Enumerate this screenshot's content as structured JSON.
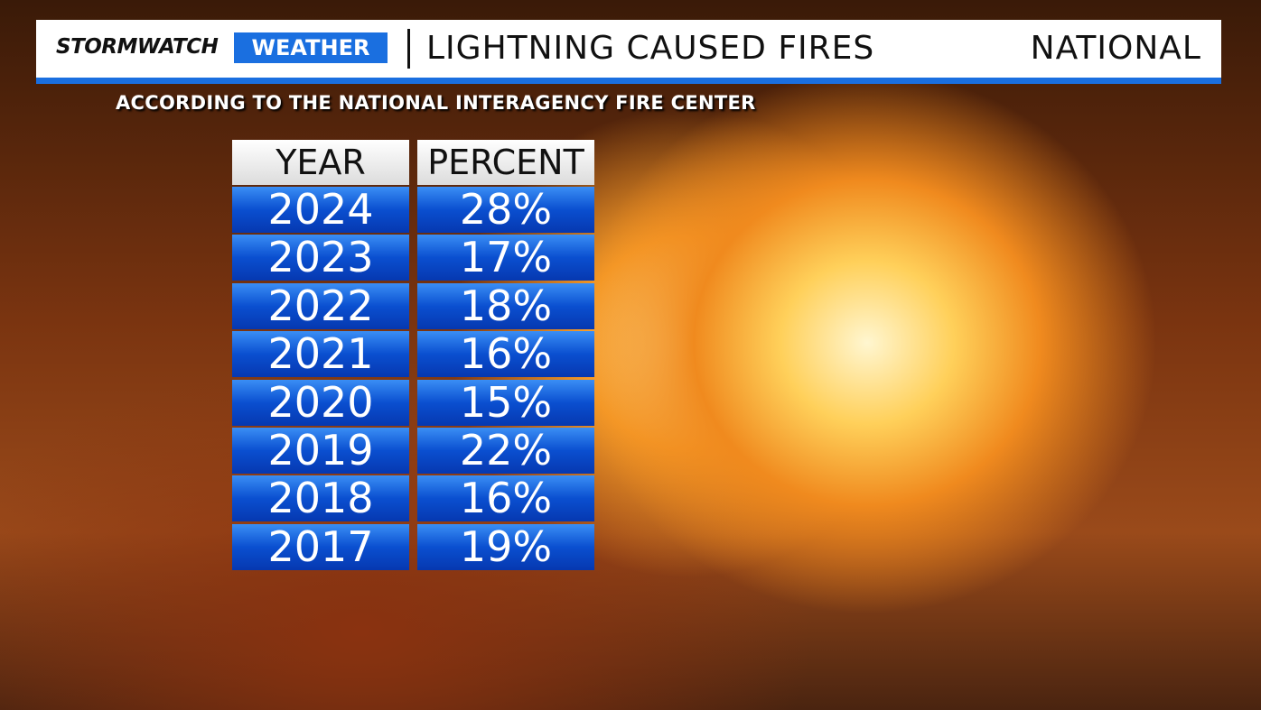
{
  "header": {
    "brand": "STORMWATCH",
    "brand_badge": "WEATHER",
    "title": "LIGHTNING CAUSED FIRES",
    "region": "NATIONAL"
  },
  "subtitle": "ACCORDING TO THE NATIONAL INTERAGENCY FIRE CENTER",
  "table": {
    "columns": [
      "YEAR",
      "PERCENT"
    ],
    "rows": [
      [
        "2024",
        "28%"
      ],
      [
        "2023",
        "17%"
      ],
      [
        "2022",
        "18%"
      ],
      [
        "2021",
        "16%"
      ],
      [
        "2020",
        "15%"
      ],
      [
        "2019",
        "22%"
      ],
      [
        "2018",
        "16%"
      ],
      [
        "2017",
        "19%"
      ]
    ]
  }
}
